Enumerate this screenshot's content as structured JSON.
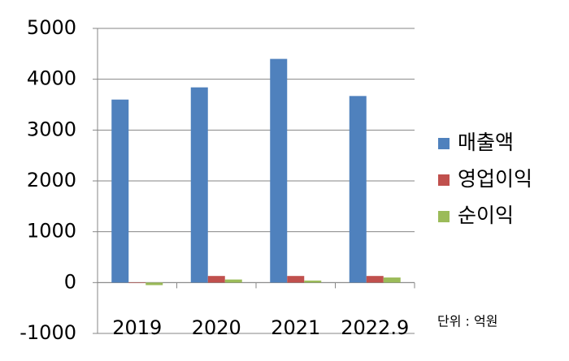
{
  "chart_data": {
    "type": "bar",
    "categories": [
      "2019",
      "2020",
      "2021",
      "2022.9"
    ],
    "series": [
      {
        "name": "매출액",
        "color": "#4f81bd",
        "values": [
          3600,
          3840,
          4400,
          3670
        ]
      },
      {
        "name": "영업이익",
        "color": "#c0504d",
        "values": [
          -10,
          130,
          130,
          130
        ]
      },
      {
        "name": "순이익",
        "color": "#9bbb59",
        "values": [
          -50,
          60,
          40,
          100
        ]
      }
    ],
    "ylim": [
      -1000,
      5000
    ],
    "yticks": [
      -1000,
      0,
      1000,
      2000,
      3000,
      4000,
      5000
    ],
    "grid": true,
    "legend": "right",
    "annotation": "단위 : 억원"
  }
}
